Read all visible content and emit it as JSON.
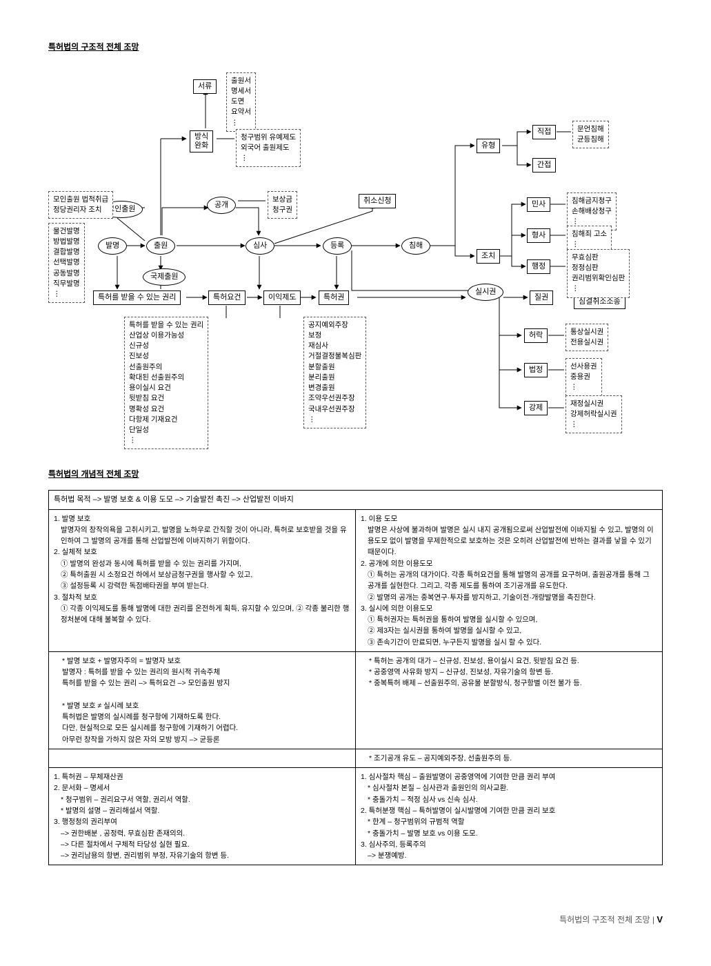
{
  "titles": {
    "structural": "특허법의 구조적 전체 조망",
    "conceptual": "특허법의 개념적 전체 조망"
  },
  "diagram": {
    "spine": {
      "balmyeong": "발명",
      "chulwon": "출원",
      "gonggae": "공개",
      "simsa": "심사",
      "deungnok": "등록",
      "chimhae": "침해",
      "silsigwon": "실시권",
      "moinchulwon": "모인출원",
      "gukjechulwon": "국제출원"
    },
    "boxes": {
      "seoryu": "서류",
      "bangsikwanhwa": "방식\n완화",
      "teukheogwonri": "특허를 받을 수 있는 권리",
      "teukheoyogeon": "특허요건",
      "iikjedo": "이익제도",
      "teukheogwon": "특허권",
      "jilgwon": "질권",
      "chwisosincheong": "취소신청",
      "minsa": "민사",
      "hyeongsa": "형사",
      "haengjeong": "행정",
      "jochi": "조치",
      "yuhyeong": "유형",
      "jikjeop": "직접",
      "ganjeop": "간접",
      "heorak": "허락",
      "beopjeong": "법정",
      "gangje": "강제"
    },
    "annot": {
      "seoryu_list": "출원서\n명세서\n도면\n요약서\n⋮",
      "bangsik_list": "청구범위 유예제도\n외국어 출원제도\n⋮",
      "balmyeong_types": "물건발명\n방법발명\n결합발명\n선택발명\n공동발명\n직무발명\n⋮",
      "moinchulwon_side": "모인출원 법적취급\n정당권리자 조치",
      "gonggae_side": "보상금\n청구권",
      "jikjeop_side": "문언침해\n균등침해",
      "minsa_side": "침해금지청구\n손해배상청구\n⋮",
      "hyeongsa_side": "침해죄 고소\n⋮",
      "haengjeong_side": "무효심판\n정정심판\n권리범위확인심판\n⋮",
      "simgyeol": "심결취소소송",
      "yogeon_list": "특허를 받을 수 있는 권리\n산업상 이용가능성\n신규성\n진보성\n선출원주의\n확대된 선출원주의\n용이실시 요건\n뒷받침 요건\n명확성 요건\n다항제 기재요건\n단일성\n⋮",
      "iik_list": "공지예외주장\n보정\n재심사\n거절결정불복심판\n분할출원\n분리출원\n변경출원\n조약우선권주장\n국내우선권주장\n⋮",
      "heorak_side": "통상실시권\n전용실시권",
      "beopjeong_side": "선사용권\n중용권\n⋮",
      "gangje_side": "재정실시권\n강제허락실시권\n⋮"
    }
  },
  "concept": {
    "purpose": "특허법 목적 –> 발명 보호 & 이용 도모 –> 기술발전 촉진 –> 산업발전 이바지",
    "q1": {
      "h1": "1. 발명 보호",
      "p1": "발명자의 창작의욕을 고취시키고, 발명을 노하우로 간직할 것이 아니라, 특허로 보호받을 것을 유인하여 그 발명의 공개를 통해 산업발전에 이바지하기 위함이다.",
      "h2": "2. 실체적 보호",
      "l21": "① 발명의 완성과 동시에 특허를 받을 수 있는 권리를 가지며,",
      "l22": "② 특허출원 시 소정요건 하에서 보상금청구권을 행사할 수 있고,",
      "l23": "③ 설정등록 시 강력한 독점배타권을 부여 받는다.",
      "h3": "3. 절차적 보호",
      "p3": "① 각종 이익제도를 통해 발명에 대한 권리를 온전하게 획득, 유지할 수 있으며, ② 각종 불리한 행정처분에 대해 불복할 수 있다.",
      "n1": "* 발명 보호 + 발명자주의 = 발명자 보호\n발명자 : 특허를 받을 수 있는 권리의 원시적 귀속주체\n특허를 받을 수 있는 권리 –> 특허요건 –> 모인출원 방지",
      "n2": "* 발명 보호 ≠ 실시례 보호\n특허법은 발명의 실시례를 청구항에 기재하도록 한다.\n다만, 현실적으로 모든 실시례를 청구항에 기재하기 어렵다.\n아무런 창작을 가하지 않은 자의 모방 방지 –> 균등론"
    },
    "q2": {
      "h1": "1. 이용 도모",
      "p1": "발명은 사상에 불과하며 발명은 실시 내지 공개됨으로써 산업발전에 이바지될 수 있고, 발명의 이용도모 없이 발명을 무제한적으로 보호하는 것은 오히려 산업발전에 반하는 결과를 낳을 수 있기 때문이다.",
      "h2": "2. 공개에 의한 이용도모",
      "l21": "① 특허는 공개의 대가이다. 각종 특허요건을 통해 발명의 공개를 요구하며, 출원공개를 통해 그 공개를 실현한다. 그리고, 각종 제도를 통하여 조기공개를 유도한다.",
      "l22": "② 발명의 공개는 중복연구·투자를 방지하고, 기술이전·개량발명을 촉진한다.",
      "h3": "3. 실시에 의한 이용도모",
      "l31": "① 특허권자는 특허권을 통하여 발명을 실시할 수 있으며,",
      "l32": "② 제3자는 실시권을 통하여 발명을 실시할 수 있고,",
      "l33": "③ 존속기간이 만료되면, 누구든지 발명을 실시 할 수 있다.",
      "n1": "* 특허는 공개의 대가 – 신규성, 진보성, 용이실시 요건, 뒷받침 요건 등.\n* 공중영역 사유화 방지 – 신규성, 진보성, 자유기술의 항변 등.\n* 중복특허 배제 – 선출원주의, 공유물 분할방식, 청구항별 이전 불가 등.",
      "n2": "* 조기공개 유도 – 공지예외주장, 선출원주의 등."
    },
    "q3": {
      "l1": "1. 특허권 – 무체재산권",
      "l2": "2. 문서화 – 명세서",
      "l2a": "* 청구범위 – 권리요구서 역할, 권리서 역할.",
      "l2b": "* 발명의 설명 – 권리해설서 역할.",
      "l3": "3. 행정청의 권리부여",
      "l3a": "–> 권한배분 , 공정력, 무효심판 존재의의.",
      "l3b": "–> 다른 절차에서 구체적 타당성 실현 필요.",
      "l3c": "–> 권리남용의 항변, 권리범위 부정, 자유기술의 항변 등."
    },
    "q4": {
      "l1": "1. 심사절차 핵심 – 출원발명이 공중영역에 기여한 만큼 권리 부여",
      "l1a": "* 심사절차 본질 – 심사관과 출원인의 의사교환.",
      "l1b": "* 충돌가치 – 적정 심사 vs 신속 심사.",
      "l2": "2. 특허분쟁 핵심 – 특허발명이 실시발명에 기여한 만큼 권리 보호",
      "l2a": "* 한계 – 청구범위의 규범적 역할",
      "l2b": "* 충돌가치 – 발명 보호 vs 이용 도모.",
      "l3": "3. 심사주의, 등록주의",
      "l3a": "–> 분쟁예방."
    }
  },
  "footer": {
    "label": "특허법의 구조적 전체 조망  |",
    "page": "V"
  }
}
